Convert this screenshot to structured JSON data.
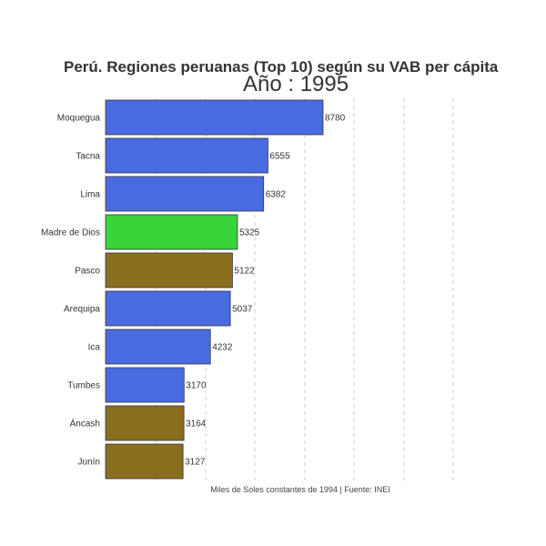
{
  "chart_data": {
    "type": "bar",
    "orientation": "horizontal",
    "title": "Perú. Regiones peruanas (Top 10) según su VAB per cápita",
    "subtitle": "Año : 1995",
    "caption": "Miles de Soles constantes de 1994 | Fuente: INEI",
    "categories": [
      "Moquegua",
      "Tacna",
      "Lima",
      "Madre de Dios",
      "Pasco",
      "Arequipa",
      "Ica",
      "Tumbes",
      "Áncash",
      "Junín"
    ],
    "values": [
      8780,
      6555,
      6382,
      5325,
      5122,
      5037,
      4232,
      3170,
      3164,
      3127
    ],
    "value_labels": [
      "8780",
      "6555",
      "6382",
      "5325",
      "5122",
      "5037",
      "4232",
      "3170",
      "3164",
      "3127"
    ],
    "colors": [
      "#4a6be0",
      "#4a6be0",
      "#4a6be0",
      "#39d43a",
      "#8a6e1e",
      "#4a6be0",
      "#4a6be0",
      "#4a6be0",
      "#8a6e1e",
      "#8a6e1e"
    ],
    "xlim": [
      0,
      14000
    ],
    "grid": "vertical-dashed",
    "legend": "none"
  }
}
